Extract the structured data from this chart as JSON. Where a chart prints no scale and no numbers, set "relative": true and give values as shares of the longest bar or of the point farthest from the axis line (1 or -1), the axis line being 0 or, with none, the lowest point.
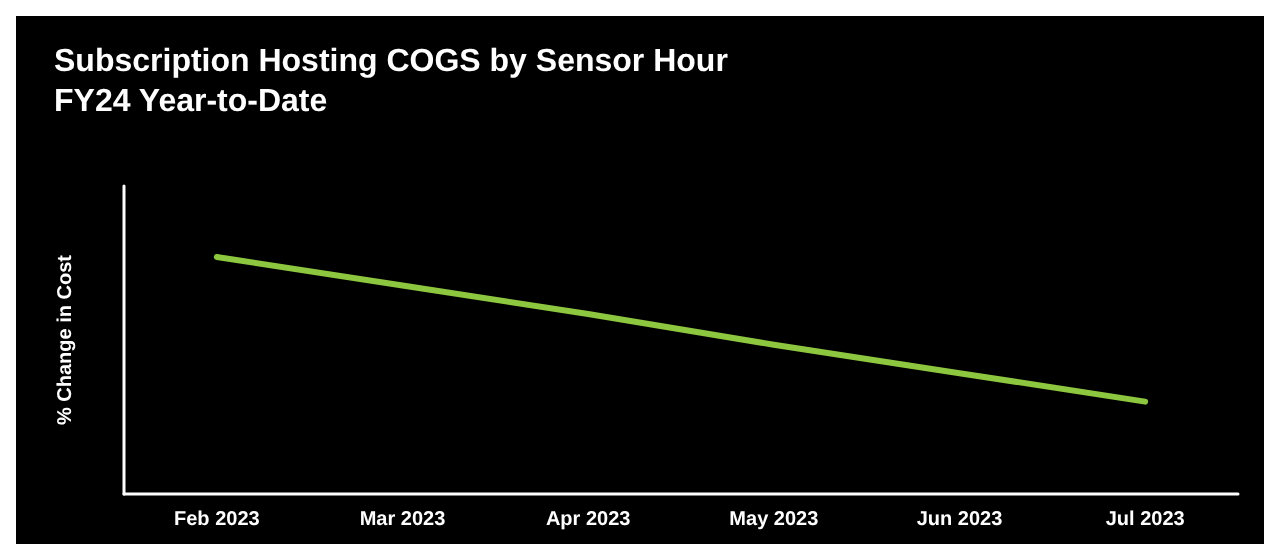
{
  "chart_data": {
    "type": "line",
    "title": "Subscription Hosting COGS by Sensor Hour\nFY24 Year-to-Date",
    "ylabel": "% Change in Cost",
    "relative": true,
    "categories": [
      "Feb 2023",
      "Mar 2023",
      "Apr 2023",
      "May 2023",
      "Jun 2023",
      "Jul 2023"
    ],
    "series": [
      {
        "color": "#8dc63f",
        "values": [
          1,
          0.88,
          0.76,
          0.63,
          0.51,
          0.39
        ]
      }
    ],
    "marker": "none",
    "line_style": "solid",
    "grid": false
  }
}
